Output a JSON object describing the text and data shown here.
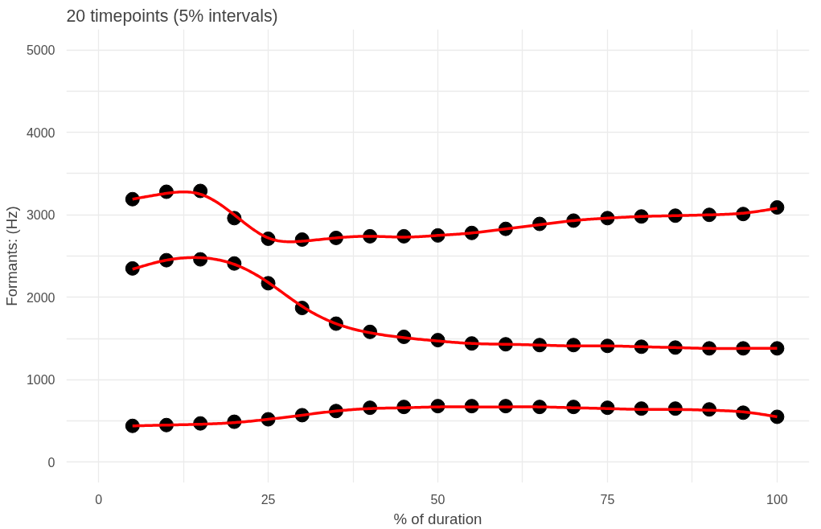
{
  "chart_data": {
    "type": "line",
    "title": "20 timepoints (5% intervals)",
    "xlabel": "% of duration",
    "ylabel": "Formants: (Hz)",
    "x": [
      5,
      10,
      15,
      20,
      25,
      30,
      35,
      40,
      45,
      50,
      55,
      60,
      65,
      70,
      75,
      80,
      85,
      90,
      95,
      100
    ],
    "series": [
      {
        "type": "scatter",
        "marker": "circle",
        "color": "#000000",
        "values": [
          3190,
          3280,
          3290,
          2960,
          2710,
          2700,
          2720,
          2740,
          2740,
          2750,
          2780,
          2830,
          2890,
          2930,
          2960,
          2980,
          2990,
          3000,
          3010,
          3090
        ]
      },
      {
        "type": "scatter",
        "marker": "circle",
        "color": "#000000",
        "values": [
          2350,
          2450,
          2460,
          2410,
          2170,
          1870,
          1680,
          1580,
          1520,
          1480,
          1440,
          1430,
          1420,
          1420,
          1410,
          1400,
          1390,
          1380,
          1380,
          1380
        ]
      },
      {
        "type": "scatter",
        "marker": "circle",
        "color": "#000000",
        "values": [
          440,
          450,
          470,
          490,
          520,
          570,
          620,
          660,
          670,
          680,
          680,
          680,
          670,
          670,
          660,
          650,
          650,
          640,
          600,
          550
        ]
      },
      {
        "color": "#ff0000",
        "values": [
          3190,
          3260,
          3250,
          3000,
          2720,
          2680,
          2720,
          2740,
          2730,
          2750,
          2780,
          2830,
          2880,
          2930,
          2960,
          2980,
          2990,
          3000,
          3020,
          3080
        ]
      },
      {
        "color": "#ff0000",
        "values": [
          2340,
          2450,
          2480,
          2400,
          2180,
          1890,
          1680,
          1570,
          1510,
          1470,
          1440,
          1430,
          1420,
          1410,
          1410,
          1400,
          1390,
          1380,
          1380,
          1380
        ]
      },
      {
        "color": "#ff0000",
        "values": [
          440,
          450,
          460,
          480,
          520,
          570,
          620,
          650,
          660,
          670,
          670,
          670,
          670,
          660,
          650,
          640,
          640,
          630,
          610,
          550
        ]
      }
    ],
    "xlim": [
      -4.75,
      104.75
    ],
    "ylim": [
      -250,
      5250
    ],
    "xticks": [
      0,
      {
        "value": 12.5,
        "label": null
      },
      25,
      {
        "value": 37.5,
        "label": null
      },
      50,
      {
        "value": 62.5,
        "label": null
      },
      75,
      {
        "value": 87.5,
        "label": null
      },
      100
    ],
    "yticks": [
      0,
      {
        "value": 500,
        "label": null
      },
      1000,
      {
        "value": 1500,
        "label": null
      },
      2000,
      {
        "value": 2500,
        "label": null
      },
      3000,
      {
        "value": 3500,
        "label": null
      },
      4000,
      {
        "value": 4500,
        "label": null
      },
      5000
    ],
    "grid": true,
    "marker": "none",
    "line_style": "solid"
  }
}
